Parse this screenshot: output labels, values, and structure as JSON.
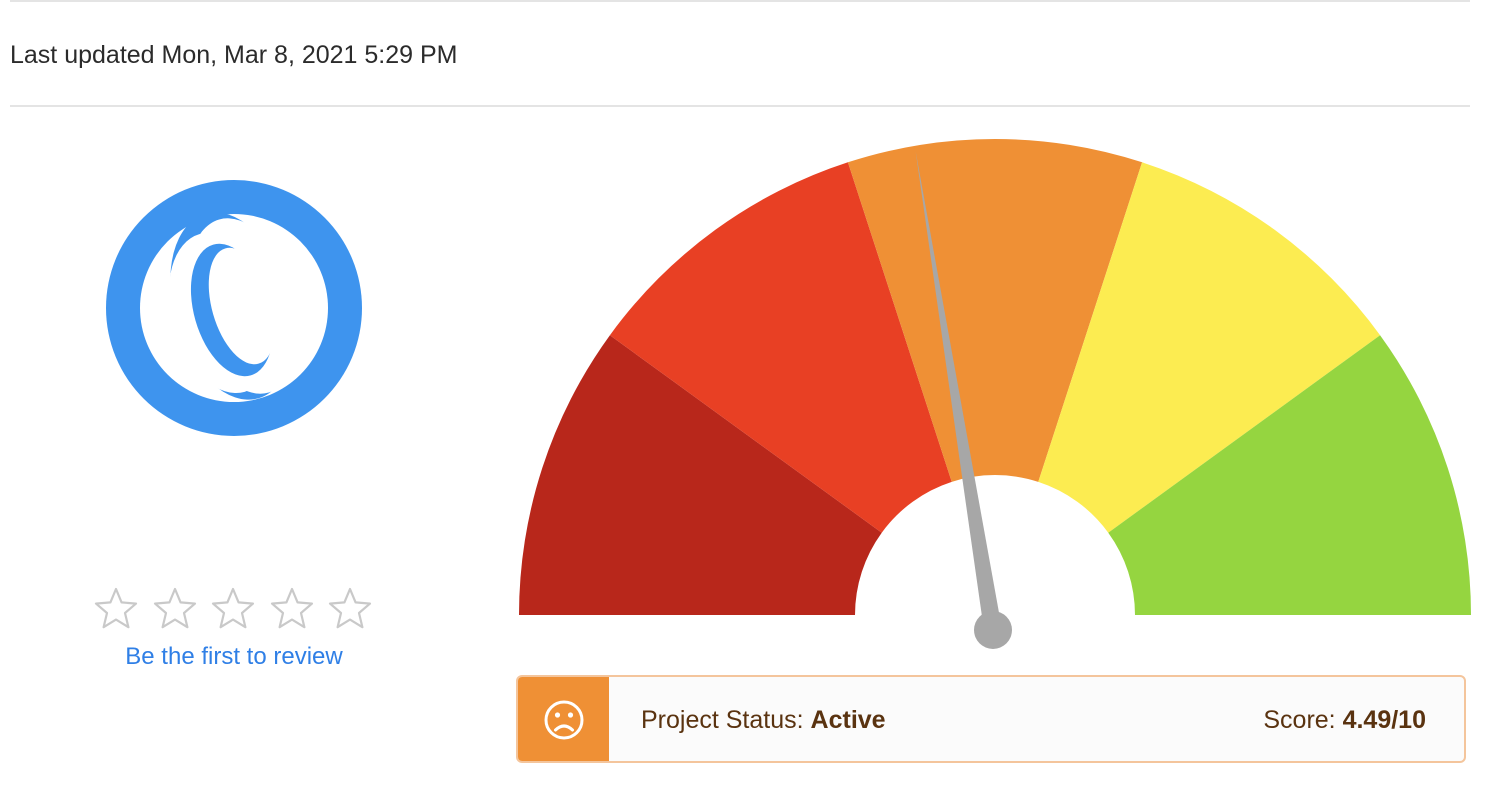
{
  "header": {
    "last_updated": "Last updated Mon, Mar 8, 2021 5:29 PM"
  },
  "logo": {
    "icon": "project-logo-icon",
    "color": "#3e94ee"
  },
  "rating": {
    "stars_total": 5,
    "stars_filled": 0,
    "review_link": "Be the first to review"
  },
  "gauge": {
    "score": 4.49,
    "max": 10,
    "segment_colors": [
      "#b8271b",
      "#e84024",
      "#ef9035",
      "#fcec51",
      "#95d540"
    ]
  },
  "status": {
    "icon": "sad-face-icon",
    "accent": "#ef9035",
    "label": "Project Status:",
    "value": "Active",
    "score_label": "Score:",
    "score_value": "4.49/10"
  }
}
